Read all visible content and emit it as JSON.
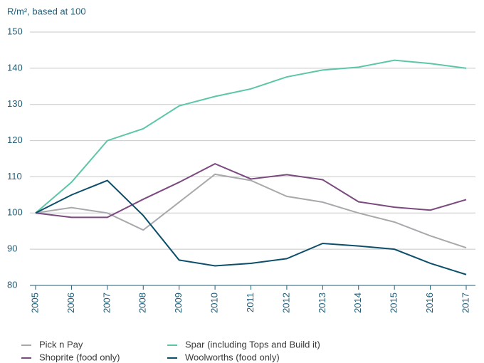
{
  "chart_data": {
    "type": "line",
    "y_label": "R/m², based at 100",
    "categories": [
      "2005",
      "2006",
      "2007",
      "2008",
      "2009",
      "2010",
      "2011",
      "2012",
      "2013",
      "2014",
      "2015",
      "2016",
      "2017"
    ],
    "series": [
      {
        "name": "Pick n Pay",
        "color": "#a7a9ac",
        "values": [
          100,
          101.5,
          100,
          95.3,
          103,
          110.7,
          109,
          104.6,
          103,
          100,
          97.5,
          93.7,
          90.4
        ]
      },
      {
        "name": "Spar (including Tops and Build it)",
        "color": "#5cc6a8",
        "values": [
          100,
          108.5,
          120,
          123.3,
          129.6,
          132.2,
          134.3,
          137.6,
          139.5,
          140.3,
          142.2,
          141.3,
          140
        ]
      },
      {
        "name": "Shoprite (food only)",
        "color": "#7b4a7f",
        "values": [
          100,
          98.8,
          98.8,
          103.8,
          108.5,
          113.6,
          109.4,
          110.6,
          109.2,
          103.1,
          101.6,
          100.8,
          103.7
        ]
      },
      {
        "name": "Woolworths (food only)",
        "color": "#0d4f6b",
        "values": [
          100,
          105,
          109,
          99.3,
          87,
          85.4,
          86.1,
          87.4,
          91.6,
          90.9,
          90,
          86.1,
          83
        ]
      }
    ],
    "ylim": [
      80,
      150
    ],
    "yticks": [
      80,
      90,
      100,
      110,
      120,
      130,
      140,
      150
    ],
    "grid": true
  }
}
